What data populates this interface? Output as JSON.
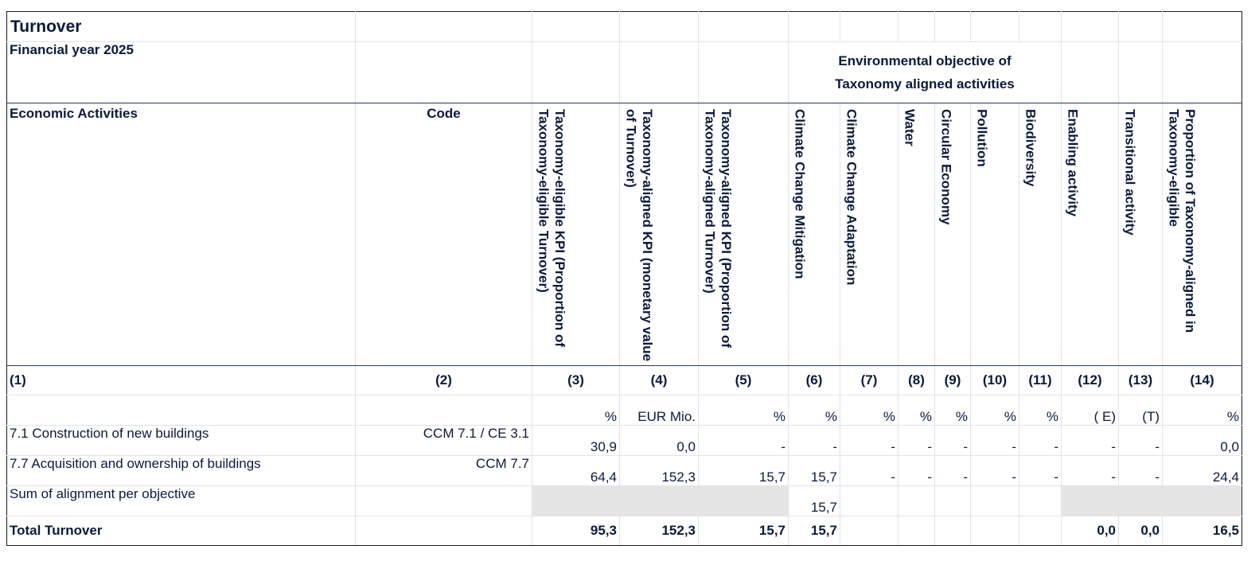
{
  "title": "Turnover",
  "financial_year": "Financial year 2025",
  "env_objective_line1": "Environmental objective of",
  "env_objective_line2": "Taxonomy aligned activities",
  "headers": {
    "activities": "Economic Activities",
    "code": "Code",
    "c3": "Taxonomy-eligible KPI (Proportion of Taxonomy-eligible Turnover)",
    "c4": "Taxonomy-aligned KPI (monetary value of Turnover)",
    "c5": "Taxonomy-aligned KPI (Proportion of Taxonomy-aligned Turnover)",
    "c6": "Climate Change Mitigation",
    "c7": "Climate Change Adaptation",
    "c8": "Water",
    "c9": "Circular Economy",
    "c10": "Pollution",
    "c11": "Biodiversity",
    "c12": "Enabling activity",
    "c13": "Transitional activity",
    "c14": "Proportion of Taxonomy-aligned in Taxonomy-eligible"
  },
  "numbers": [
    "(1)",
    "(2)",
    "(3)",
    "(4)",
    "(5)",
    "(6)",
    "(7)",
    "(8)",
    "(9)",
    "(10)",
    "(11)",
    "(12)",
    "(13)",
    "(14)"
  ],
  "units": [
    "",
    "",
    "%",
    "EUR Mio.",
    "%",
    "%",
    "%",
    "%",
    "%",
    "%",
    "%",
    "( E)",
    "(T)",
    "%"
  ],
  "rows": [
    {
      "activity": "7.1 Construction of new buildings",
      "code": "CCM 7.1 / CE 3.1",
      "v": [
        "30,9",
        "0,0",
        "-",
        "-",
        "-",
        "-",
        "-",
        "-",
        "-",
        "-",
        "-",
        "0,0"
      ]
    },
    {
      "activity": "7.7 Acquisition and ownership of buildings",
      "code": "CCM 7.7",
      "v": [
        "64,4",
        "152,3",
        "15,7",
        "15,7",
        "-",
        "-",
        "-",
        "-",
        "-",
        "-",
        "-",
        "24,4"
      ]
    }
  ],
  "sum_row": {
    "label": "Sum of alignment per objective",
    "ccm": "15,7"
  },
  "total_row": {
    "label": "Total Turnover",
    "c3": "95,3",
    "c4": "152,3",
    "c5": "15,7",
    "c6": "15,7",
    "c12": "0,0",
    "c13": "0,0",
    "c14": "16,5"
  }
}
